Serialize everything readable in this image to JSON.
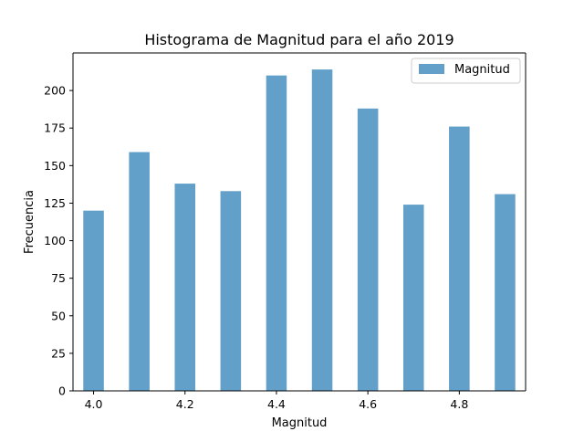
{
  "chart_data": {
    "type": "bar",
    "title": "Histograma de Magnitud para el año 2019",
    "xlabel": "Magnitud",
    "ylabel": "Frecuencia",
    "xlim": [
      3.955,
      4.945
    ],
    "ylim": [
      0,
      225
    ],
    "x": [
      4.0,
      4.1,
      4.2,
      4.3,
      4.4,
      4.5,
      4.6,
      4.7,
      4.8,
      4.9
    ],
    "values": [
      120,
      159,
      138,
      133,
      210,
      214,
      188,
      124,
      176,
      131
    ],
    "bin_width": 0.045,
    "xticks": [
      4.0,
      4.2,
      4.4,
      4.6,
      4.8
    ],
    "xtick_labels": [
      "4.0",
      "4.2",
      "4.4",
      "4.6",
      "4.8"
    ],
    "yticks": [
      0,
      25,
      50,
      75,
      100,
      125,
      150,
      175,
      200
    ],
    "ytick_labels": [
      "0",
      "25",
      "50",
      "75",
      "100",
      "125",
      "150",
      "175",
      "200"
    ],
    "series": [
      {
        "name": "Magnitud",
        "color": "#1f77b4",
        "alpha": 0.7
      }
    ],
    "grid": false,
    "legend_position": "top-right"
  }
}
